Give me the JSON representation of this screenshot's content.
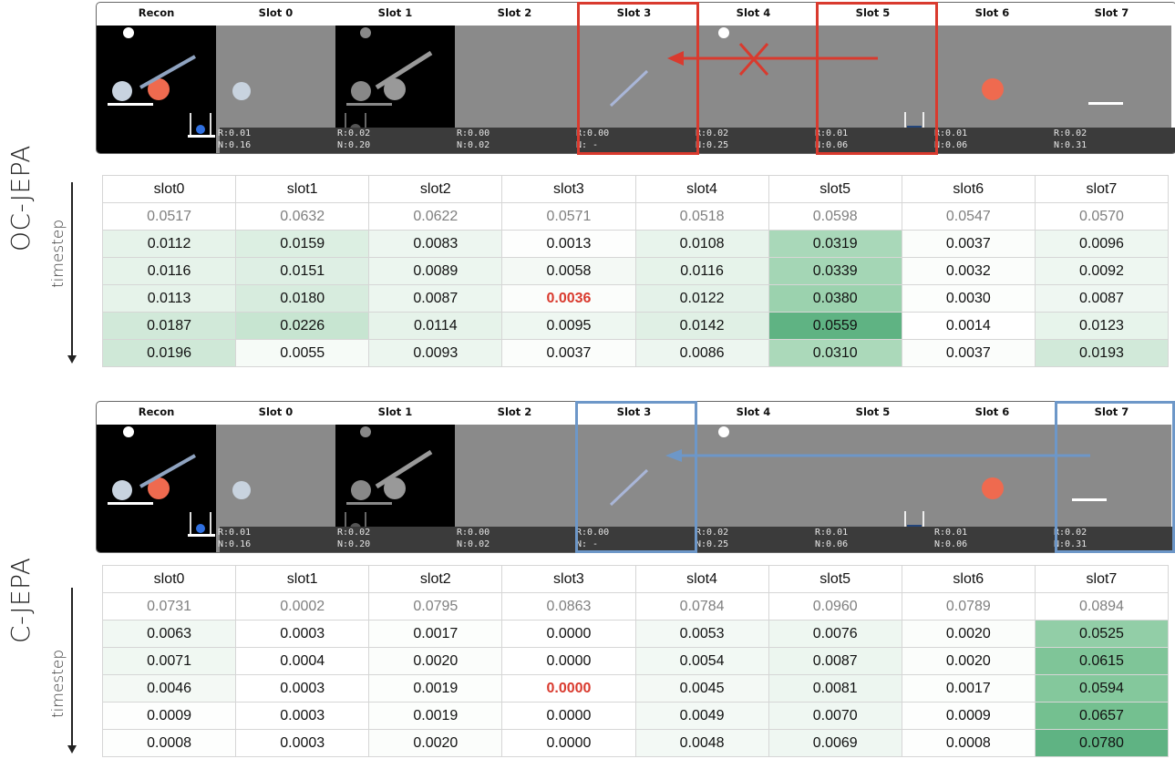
{
  "side_labels": {
    "top": "OC-JEPA",
    "bottom": "C-JEPA",
    "axis": "timestep"
  },
  "strip_titles": [
    "Recon",
    "Slot 0",
    "Slot 1",
    "Slot 2",
    "Slot 3",
    "Slot 4",
    "Slot 5",
    "Slot 6",
    "Slot 7"
  ],
  "panel_info": [
    {
      "r": "R:0.01",
      "n": "N:0.16"
    },
    {
      "r": "R:0.02",
      "n": "N:0.20"
    },
    {
      "r": "R:0.00",
      "n": "N:0.02"
    },
    {
      "r": "R:0.00",
      "n": "N: -"
    },
    {
      "r": "R:0.02",
      "n": "N:0.25"
    },
    {
      "r": "R:0.01",
      "n": "N:0.06"
    },
    {
      "r": "R:0.01",
      "n": "N:0.06"
    },
    {
      "r": "R:0.02",
      "n": "N:0.31"
    }
  ],
  "highlight_colors": {
    "red": "#d93a2e",
    "blue": "#6d97c8",
    "green_max": "#5fb383"
  },
  "top_table": {
    "columns": [
      "slot0",
      "slot1",
      "slot2",
      "slot3",
      "slot4",
      "slot5",
      "slot6",
      "slot7"
    ],
    "first_row": [
      "0.0517",
      "0.0632",
      "0.0622",
      "0.0571",
      "0.0518",
      "0.0598",
      "0.0547",
      "0.0570"
    ],
    "rows": [
      [
        "0.0112",
        "0.0159",
        "0.0083",
        "0.0013",
        "0.0108",
        "0.0319",
        "0.0037",
        "0.0096"
      ],
      [
        "0.0116",
        "0.0151",
        "0.0089",
        "0.0058",
        "0.0116",
        "0.0339",
        "0.0032",
        "0.0092"
      ],
      [
        "0.0113",
        "0.0180",
        "0.0087",
        "0.0036",
        "0.0122",
        "0.0380",
        "0.0030",
        "0.0087"
      ],
      [
        "0.0187",
        "0.0226",
        "0.0114",
        "0.0095",
        "0.0142",
        "0.0559",
        "0.0014",
        "0.0123"
      ],
      [
        "0.0196",
        "0.0055",
        "0.0093",
        "0.0037",
        "0.0086",
        "0.0310",
        "0.0037",
        "0.0193"
      ]
    ]
  },
  "bottom_table": {
    "columns": [
      "slot0",
      "slot1",
      "slot2",
      "slot3",
      "slot4",
      "slot5",
      "slot6",
      "slot7"
    ],
    "first_row": [
      "0.0731",
      "0.0002",
      "0.0795",
      "0.0863",
      "0.0784",
      "0.0960",
      "0.0789",
      "0.0894"
    ],
    "rows": [
      [
        "0.0063",
        "0.0003",
        "0.0017",
        "0.0000",
        "0.0053",
        "0.0076",
        "0.0020",
        "0.0525"
      ],
      [
        "0.0071",
        "0.0004",
        "0.0020",
        "0.0000",
        "0.0054",
        "0.0087",
        "0.0020",
        "0.0615"
      ],
      [
        "0.0046",
        "0.0003",
        "0.0019",
        "0.0000",
        "0.0045",
        "0.0081",
        "0.0017",
        "0.0594"
      ],
      [
        "0.0009",
        "0.0003",
        "0.0019",
        "0.0000",
        "0.0049",
        "0.0070",
        "0.0009",
        "0.0657"
      ],
      [
        "0.0008",
        "0.0003",
        "0.0020",
        "0.0000",
        "0.0048",
        "0.0069",
        "0.0008",
        "0.0780"
      ]
    ]
  }
}
